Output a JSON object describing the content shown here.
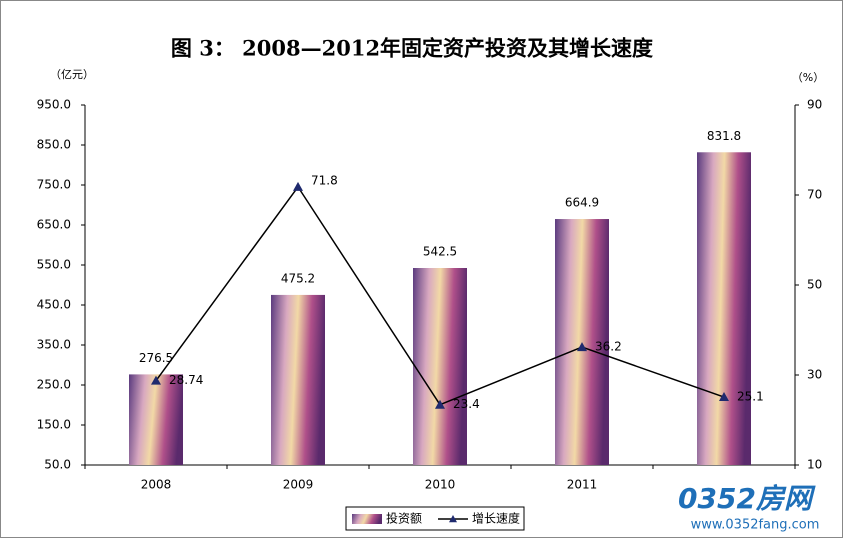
{
  "chart_data": {
    "type": "bar",
    "title": "图 3：  2008—2012年固定资产投资及其增长速度",
    "ylabel": "（亿元）",
    "y2label": "（%）",
    "categories": [
      "2008",
      "2009",
      "2010",
      "2011",
      null
    ],
    "series": [
      {
        "name": "投资额",
        "type": "bar",
        "color": "#b0508a",
        "values": [
          276.5,
          475.2,
          542.5,
          664.9,
          831.8
        ]
      },
      {
        "name": "增长速度",
        "type": "line",
        "axis": "y2",
        "color": "#000000",
        "marker_color": "#1f2a6e",
        "values": [
          28.74,
          71.8,
          23.4,
          36.2,
          25.1
        ]
      }
    ],
    "ylim": [
      50,
      950
    ],
    "yticks": [
      {
        "value": 50,
        "label": "50.0"
      },
      {
        "value": 150,
        "label": "150.0"
      },
      {
        "value": 250,
        "label": "250.0"
      },
      {
        "value": 350,
        "label": "350.0"
      },
      {
        "value": 450,
        "label": "450.0"
      },
      {
        "value": 550,
        "label": "550.0"
      },
      {
        "value": 650,
        "label": "650.0"
      },
      {
        "value": 750,
        "label": "750.0"
      },
      {
        "value": 850,
        "label": "850.0"
      },
      {
        "value": 950,
        "label": "950.0"
      }
    ],
    "y2lim": [
      10,
      90
    ],
    "y2ticks": [
      10,
      30,
      50,
      70,
      90
    ],
    "grid": false,
    "legend": "bottom",
    "watermark": {
      "logo": "0352房网",
      "url": "www.0352fang.com"
    }
  }
}
